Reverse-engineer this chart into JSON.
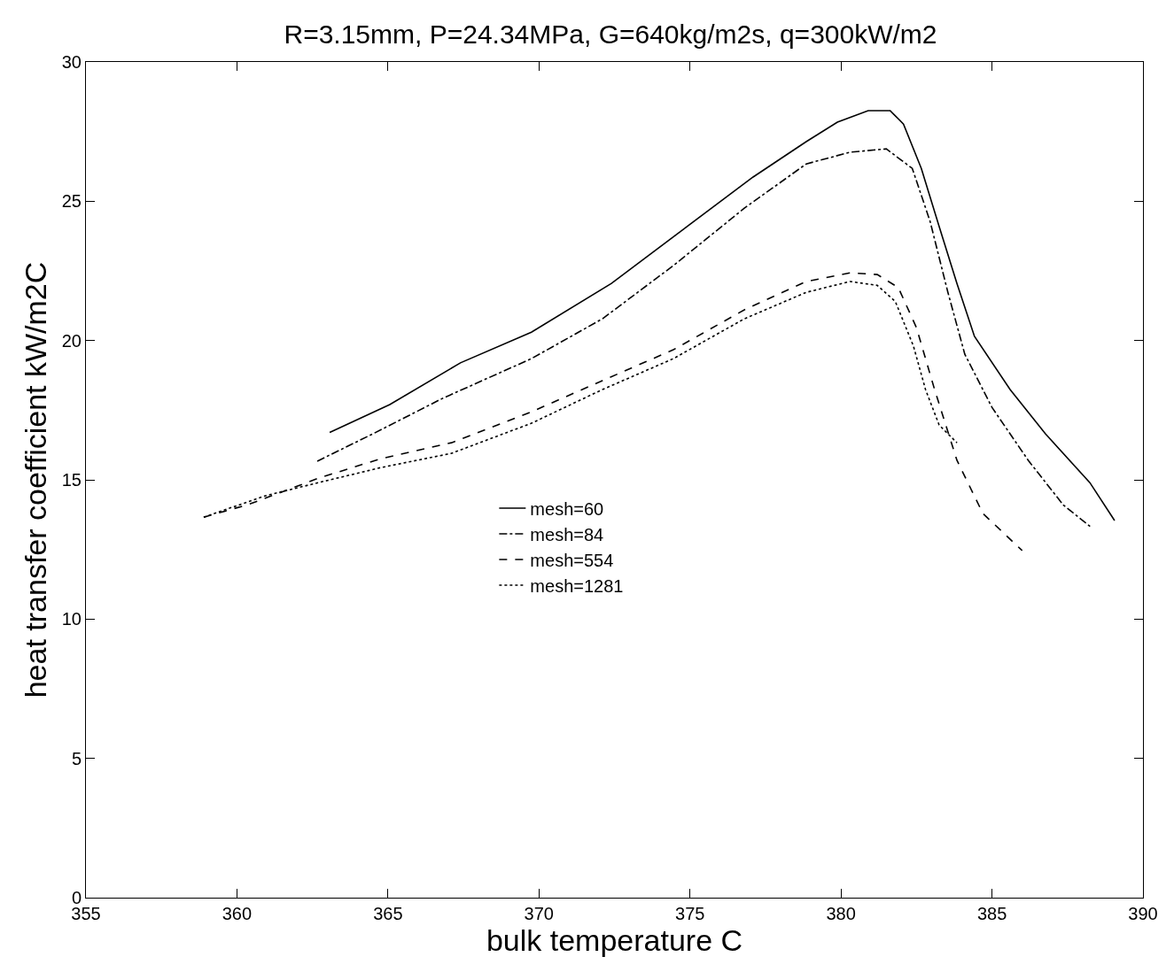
{
  "chart_data": {
    "type": "line",
    "title": "R=3.15mm, P=24.34MPa, G=640kg/m2s, q=300kW/m2",
    "xlabel": "bulk temperature C",
    "ylabel": "heat transfer coefficient kW/m2C",
    "xlim": [
      355,
      390
    ],
    "xticks": [
      355,
      360,
      365,
      370,
      375,
      380,
      385,
      390
    ],
    "ylim": [
      0,
      30
    ],
    "yticks": [
      0,
      5,
      10,
      15,
      20,
      25,
      30
    ],
    "grid": false,
    "legend": "center",
    "marker": "none",
    "series": [
      {
        "name": "mesh=60",
        "color": "#000000",
        "line_style": "solid",
        "x": [
          363.07,
          365.06,
          367.4,
          369.75,
          372.4,
          374.74,
          377.09,
          378.85,
          379.88,
          380.9,
          381.63,
          382.07,
          382.66,
          383.25,
          383.84,
          384.42,
          385.6,
          386.77,
          388.24,
          389.06
        ],
        "values": [
          16.7,
          17.7,
          19.2,
          20.3,
          22.05,
          23.96,
          25.87,
          27.14,
          27.84,
          28.25,
          28.25,
          27.77,
          26.18,
          24.1,
          22.05,
          20.15,
          18.24,
          16.65,
          14.9,
          13.54
        ]
      },
      {
        "name": "mesh=84",
        "color": "#000000",
        "line_style": "dashdot",
        "x": [
          362.66,
          364.5,
          366.8,
          369.75,
          372.1,
          374.45,
          376.8,
          378.85,
          380.3,
          381.5,
          382.36,
          382.95,
          383.54,
          384.1,
          385.0,
          386.2,
          387.36,
          388.3
        ],
        "values": [
          15.67,
          16.65,
          17.92,
          19.35,
          20.78,
          22.69,
          24.75,
          26.34,
          26.76,
          26.88,
          26.18,
          24.28,
          21.73,
          19.51,
          17.6,
          15.7,
          14.1,
          13.28
        ]
      },
      {
        "name": "mesh=554",
        "color": "#000000",
        "line_style": "dashed",
        "x": [
          358.9,
          360.37,
          362.7,
          364.77,
          367.1,
          369.75,
          372.1,
          374.45,
          376.8,
          378.85,
          380.3,
          381.2,
          381.9,
          382.5,
          383.1,
          383.84,
          384.7,
          386.0
        ],
        "values": [
          13.66,
          14.11,
          15.06,
          15.76,
          16.33,
          17.44,
          18.56,
          19.67,
          21.1,
          22.12,
          22.43,
          22.37,
          21.9,
          20.46,
          18.24,
          15.7,
          13.79,
          12.46
        ]
      },
      {
        "name": "mesh=1281",
        "color": "#000000",
        "line_style": "dotted",
        "x": [
          358.9,
          360.95,
          362.7,
          364.77,
          367.1,
          369.75,
          372.1,
          374.45,
          376.8,
          378.85,
          380.3,
          381.2,
          381.8,
          382.4,
          382.8,
          383.25,
          383.84
        ],
        "values": [
          13.66,
          14.43,
          14.9,
          15.44,
          15.95,
          17.03,
          18.24,
          19.35,
          20.78,
          21.73,
          22.12,
          21.98,
          21.4,
          19.8,
          18.24,
          16.97,
          16.33
        ]
      }
    ]
  }
}
